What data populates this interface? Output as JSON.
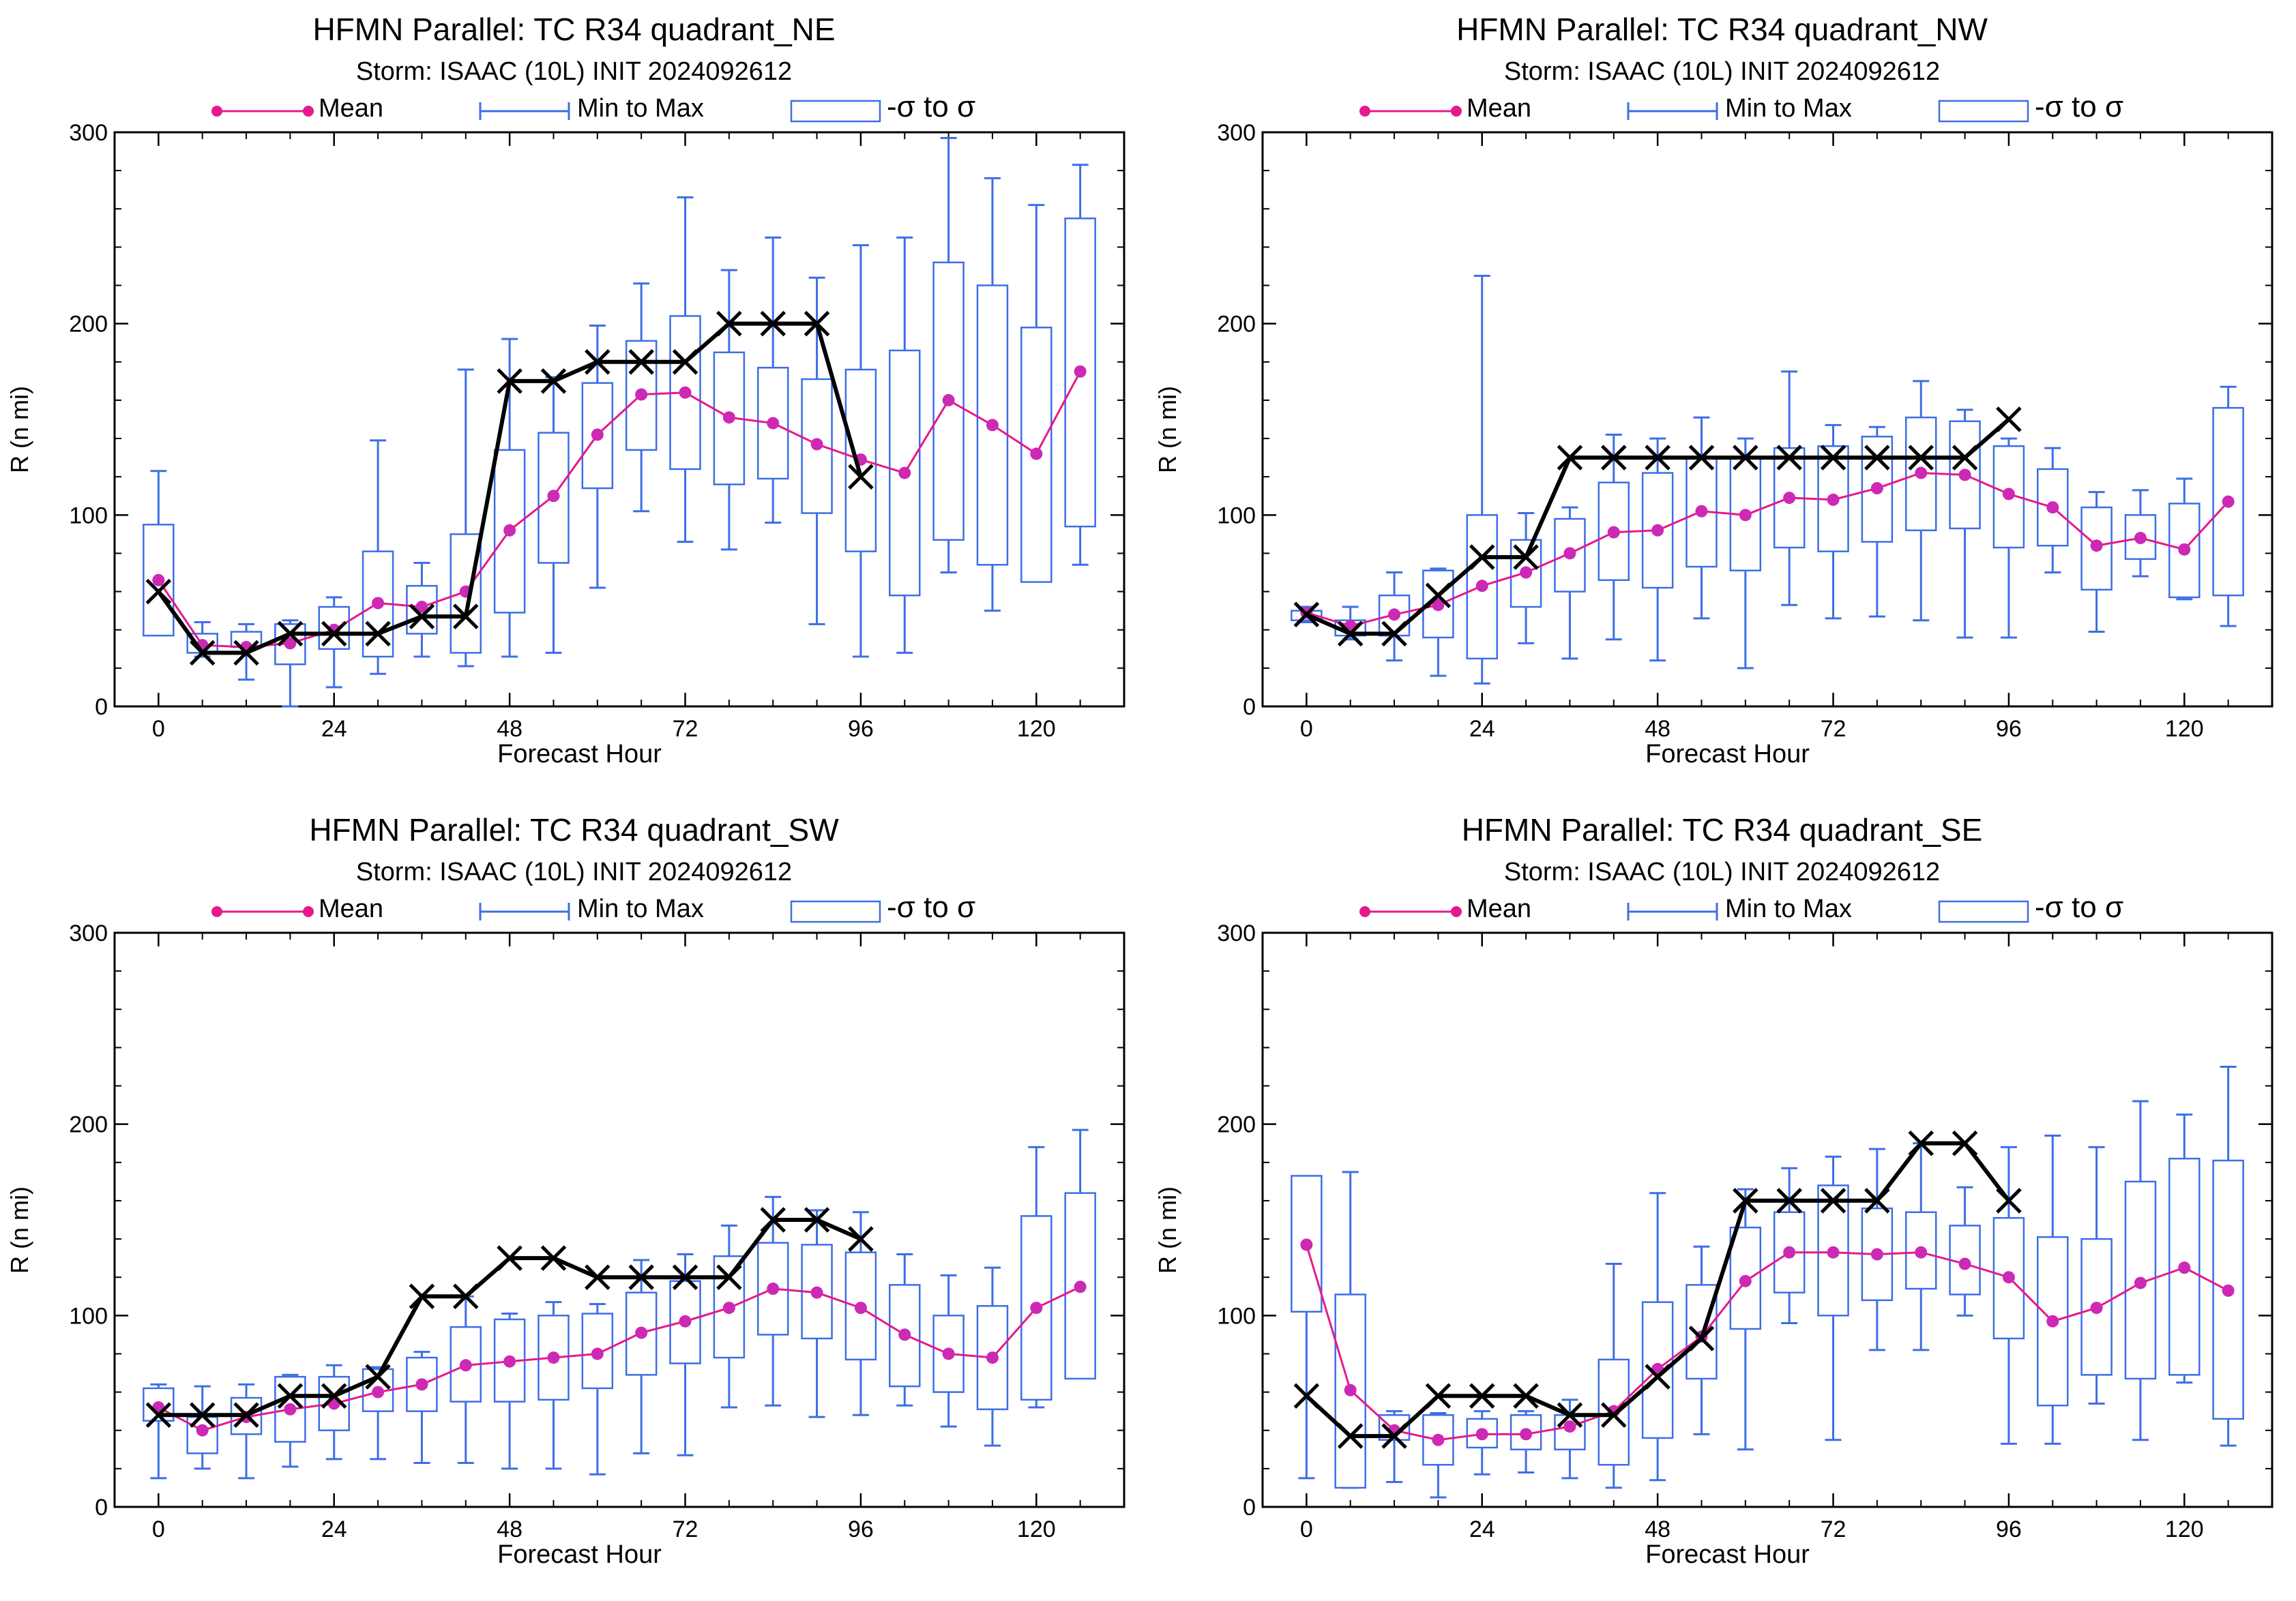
{
  "legend": {
    "mean_label": "Mean",
    "range_label": "Min to Max",
    "sigma_label": "-σ to σ"
  },
  "colors": {
    "mean": "#e5198d",
    "mean_marker": "#cc29b5",
    "box": "#3d6ee6",
    "best_track": "#000000"
  },
  "chart_data": [
    {
      "type": "box",
      "title": "HFMN Parallel: TC  R34 quadrant_NE",
      "subtitle": "Storm: ISAAC (10L) INIT 2024092612",
      "xlabel": "Forecast Hour",
      "ylabel": "R (n mi)",
      "xlim": [
        -6,
        132
      ],
      "ylim": [
        0,
        300
      ],
      "xticks": [
        0,
        24,
        48,
        72,
        96,
        120
      ],
      "yticks": [
        0,
        100,
        200,
        300
      ],
      "x": [
        0,
        6,
        12,
        18,
        24,
        30,
        36,
        42,
        48,
        54,
        60,
        66,
        72,
        78,
        84,
        90,
        96,
        102,
        108,
        114,
        120,
        126
      ],
      "mean": [
        66,
        32,
        31,
        33,
        40,
        54,
        52,
        60,
        92,
        110,
        142,
        163,
        164,
        151,
        148,
        137,
        129,
        122,
        160,
        147,
        132,
        175
      ],
      "min": [
        42,
        26,
        14,
        0,
        10,
        17,
        26,
        21,
        26,
        28,
        62,
        102,
        86,
        82,
        96,
        43,
        26,
        28,
        70,
        50,
        80,
        74
      ],
      "max": [
        123,
        44,
        43,
        45,
        57,
        139,
        75,
        176,
        192,
        172,
        199,
        221,
        266,
        228,
        245,
        224,
        241,
        245,
        297,
        276,
        262,
        283
      ],
      "sigma_low": [
        37,
        28,
        31,
        22,
        30,
        26,
        38,
        28,
        49,
        75,
        114,
        134,
        124,
        116,
        119,
        101,
        81,
        58,
        87,
        74,
        65,
        94
      ],
      "sigma_high": [
        95,
        38,
        39,
        43,
        52,
        81,
        63,
        90,
        134,
        143,
        169,
        191,
        204,
        185,
        177,
        171,
        176,
        186,
        232,
        220,
        198,
        255
      ],
      "best_track_x": [
        0,
        6,
        12,
        18,
        24,
        30,
        36,
        42,
        48,
        54,
        60,
        66,
        72,
        78,
        84,
        90,
        96
      ],
      "best_track_y": [
        60,
        28,
        28,
        38,
        38,
        38,
        47,
        47,
        170,
        170,
        180,
        180,
        180,
        200,
        200,
        200,
        120
      ]
    },
    {
      "type": "box",
      "title": "HFMN Parallel: TC  R34 quadrant_NW",
      "subtitle": "Storm: ISAAC (10L) INIT 2024092612",
      "xlabel": "Forecast Hour",
      "ylabel": "R (n mi)",
      "xlim": [
        -6,
        132
      ],
      "ylim": [
        0,
        300
      ],
      "xticks": [
        0,
        24,
        48,
        72,
        96,
        120
      ],
      "yticks": [
        0,
        100,
        200,
        300
      ],
      "x": [
        0,
        6,
        12,
        18,
        24,
        30,
        36,
        42,
        48,
        54,
        60,
        66,
        72,
        78,
        84,
        90,
        96,
        102,
        108,
        114,
        120,
        126
      ],
      "mean": [
        49,
        42,
        48,
        53,
        63,
        70,
        80,
        91,
        92,
        102,
        100,
        109,
        108,
        114,
        122,
        121,
        111,
        104,
        84,
        88,
        82,
        107
      ],
      "min": [
        44,
        35,
        24,
        16,
        12,
        33,
        25,
        35,
        24,
        46,
        20,
        53,
        46,
        47,
        45,
        36,
        36,
        70,
        39,
        68,
        56,
        42
      ],
      "max": [
        52,
        52,
        70,
        72,
        225,
        101,
        104,
        142,
        140,
        151,
        140,
        175,
        147,
        146,
        170,
        155,
        140,
        135,
        112,
        113,
        119,
        167
      ],
      "sigma_low": [
        45,
        37,
        37,
        36,
        25,
        52,
        60,
        66,
        62,
        73,
        71,
        83,
        81,
        86,
        92,
        93,
        83,
        84,
        61,
        77,
        57,
        58
      ],
      "sigma_high": [
        50,
        45,
        58,
        71,
        100,
        87,
        98,
        117,
        122,
        130,
        130,
        135,
        136,
        141,
        151,
        149,
        136,
        124,
        104,
        100,
        106,
        156
      ],
      "best_track_x": [
        0,
        6,
        12,
        18,
        24,
        30,
        36,
        42,
        48,
        54,
        60,
        66,
        72,
        78,
        84,
        90,
        96
      ],
      "best_track_y": [
        48,
        38,
        38,
        58,
        78,
        78,
        130,
        130,
        130,
        130,
        130,
        130,
        130,
        130,
        130,
        130,
        150
      ]
    },
    {
      "type": "box",
      "title": "HFMN Parallel: TC  R34 quadrant_SW",
      "subtitle": "Storm: ISAAC (10L) INIT 2024092612",
      "xlabel": "Forecast Hour",
      "ylabel": "R (n mi)",
      "xlim": [
        -6,
        132
      ],
      "ylim": [
        0,
        300
      ],
      "xticks": [
        0,
        24,
        48,
        72,
        96,
        120
      ],
      "yticks": [
        0,
        100,
        200,
        300
      ],
      "x": [
        0,
        6,
        12,
        18,
        24,
        30,
        36,
        42,
        48,
        54,
        60,
        66,
        72,
        78,
        84,
        90,
        96,
        102,
        108,
        114,
        120,
        126
      ],
      "mean": [
        52,
        40,
        47,
        51,
        54,
        60,
        64,
        74,
        76,
        78,
        80,
        91,
        97,
        104,
        114,
        112,
        104,
        90,
        80,
        78,
        104,
        115
      ],
      "min": [
        15,
        20,
        15,
        21,
        25,
        25,
        23,
        23,
        20,
        20,
        17,
        28,
        27,
        52,
        53,
        47,
        48,
        53,
        42,
        32,
        52,
        70
      ],
      "max": [
        64,
        63,
        64,
        69,
        74,
        73,
        81,
        110,
        101,
        107,
        106,
        129,
        132,
        147,
        162,
        155,
        154,
        132,
        121,
        125,
        188,
        197
      ],
      "sigma_low": [
        45,
        28,
        38,
        34,
        40,
        50,
        50,
        55,
        55,
        56,
        62,
        69,
        75,
        78,
        90,
        88,
        77,
        63,
        60,
        51,
        56,
        67
      ],
      "sigma_high": [
        62,
        47,
        57,
        68,
        68,
        72,
        78,
        94,
        98,
        100,
        101,
        112,
        118,
        131,
        138,
        137,
        133,
        116,
        100,
        105,
        152,
        164
      ],
      "best_track_x": [
        0,
        6,
        12,
        18,
        24,
        30,
        36,
        42,
        48,
        54,
        60,
        66,
        72,
        78,
        84,
        90,
        96
      ],
      "best_track_y": [
        48,
        48,
        48,
        58,
        58,
        68,
        110,
        110,
        130,
        130,
        120,
        120,
        120,
        120,
        150,
        150,
        140
      ]
    },
    {
      "type": "box",
      "title": "HFMN Parallel: TC  R34 quadrant_SE",
      "subtitle": "Storm: ISAAC (10L) INIT 2024092612",
      "xlabel": "Forecast Hour",
      "ylabel": "R (n mi)",
      "xlim": [
        -6,
        132
      ],
      "ylim": [
        0,
        300
      ],
      "xticks": [
        0,
        24,
        48,
        72,
        96,
        120
      ],
      "yticks": [
        0,
        100,
        200,
        300
      ],
      "x": [
        0,
        6,
        12,
        18,
        24,
        30,
        36,
        42,
        48,
        54,
        60,
        66,
        72,
        78,
        84,
        90,
        96,
        102,
        108,
        114,
        120,
        126
      ],
      "mean": [
        137,
        61,
        40,
        35,
        38,
        38,
        42,
        50,
        72,
        89,
        118,
        133,
        133,
        132,
        133,
        127,
        120,
        97,
        104,
        117,
        125,
        113
      ],
      "min": [
        15,
        10,
        13,
        5,
        17,
        18,
        15,
        10,
        14,
        38,
        30,
        96,
        35,
        82,
        82,
        100,
        33,
        33,
        54,
        35,
        65,
        32
      ],
      "max": [
        157,
        175,
        50,
        49,
        50,
        50,
        56,
        127,
        164,
        136,
        166,
        177,
        183,
        187,
        190,
        167,
        188,
        194,
        188,
        212,
        205,
        230
      ],
      "sigma_low": [
        102,
        10,
        35,
        22,
        31,
        30,
        30,
        22,
        36,
        67,
        93,
        112,
        100,
        108,
        114,
        111,
        88,
        53,
        69,
        67,
        69,
        46
      ],
      "sigma_high": [
        173,
        111,
        48,
        48,
        46,
        48,
        48,
        77,
        107,
        116,
        146,
        154,
        168,
        156,
        154,
        147,
        151,
        141,
        140,
        170,
        182,
        181
      ],
      "best_track_x": [
        0,
        6,
        12,
        18,
        24,
        30,
        36,
        42,
        48,
        54,
        60,
        66,
        72,
        78,
        84,
        90,
        96
      ],
      "best_track_y": [
        58,
        37,
        37,
        58,
        58,
        58,
        48,
        48,
        68,
        88,
        160,
        160,
        160,
        160,
        190,
        190,
        160
      ]
    }
  ]
}
